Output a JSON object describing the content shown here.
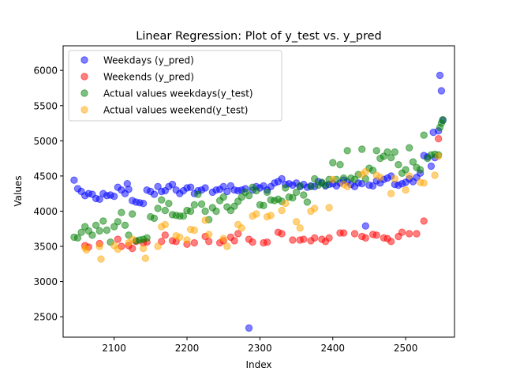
{
  "chart_data": {
    "type": "scatter",
    "title": "Linear Regression: Plot of y_test vs. y_pred",
    "xlabel": "Index",
    "ylabel": "Values",
    "xlim": [
      2030,
      2567
    ],
    "ylim": [
      2210,
      6350
    ],
    "xticks": [
      2100,
      2200,
      2300,
      2400,
      2500
    ],
    "yticks": [
      2500,
      3000,
      3500,
      4000,
      4500,
      5000,
      5500,
      6000
    ],
    "legend_position": "top-left",
    "series": [
      {
        "name": "Weekdays (y_pred)",
        "color": "#0000ff",
        "points": [
          [
            2045,
            4440
          ],
          [
            2050,
            4320
          ],
          [
            2055,
            4280
          ],
          [
            2060,
            4220
          ],
          [
            2065,
            4250
          ],
          [
            2070,
            4240
          ],
          [
            2075,
            4180
          ],
          [
            2080,
            4170
          ],
          [
            2085,
            4250
          ],
          [
            2090,
            4220
          ],
          [
            2095,
            4230
          ],
          [
            2100,
            4210
          ],
          [
            2105,
            4340
          ],
          [
            2110,
            4300
          ],
          [
            2115,
            4250
          ],
          [
            2118,
            4390
          ],
          [
            2120,
            4310
          ],
          [
            2125,
            4150
          ],
          [
            2130,
            4130
          ],
          [
            2135,
            4120
          ],
          [
            2140,
            4110
          ],
          [
            2145,
            4300
          ],
          [
            2150,
            4280
          ],
          [
            2155,
            4240
          ],
          [
            2160,
            4350
          ],
          [
            2165,
            4280
          ],
          [
            2170,
            4290
          ],
          [
            2175,
            4350
          ],
          [
            2180,
            4380
          ],
          [
            2185,
            4300
          ],
          [
            2190,
            4250
          ],
          [
            2195,
            4290
          ],
          [
            2200,
            4330
          ],
          [
            2205,
            4340
          ],
          [
            2210,
            4250
          ],
          [
            2215,
            4290
          ],
          [
            2220,
            4300
          ],
          [
            2225,
            4330
          ],
          [
            2235,
            4270
          ],
          [
            2240,
            4300
          ],
          [
            2245,
            4310
          ],
          [
            2250,
            4350
          ],
          [
            2255,
            4280
          ],
          [
            2260,
            4360
          ],
          [
            2265,
            4300
          ],
          [
            2270,
            4290
          ],
          [
            2275,
            4300
          ],
          [
            2280,
            4320
          ],
          [
            2285,
            2340
          ],
          [
            2290,
            4300
          ],
          [
            2295,
            4350
          ],
          [
            2300,
            4330
          ],
          [
            2305,
            4360
          ],
          [
            2310,
            4300
          ],
          [
            2315,
            4350
          ],
          [
            2320,
            4400
          ],
          [
            2325,
            4420
          ],
          [
            2330,
            4460
          ],
          [
            2335,
            4380
          ],
          [
            2340,
            4390
          ],
          [
            2345,
            4370
          ],
          [
            2350,
            4400
          ],
          [
            2355,
            4350
          ],
          [
            2360,
            4380
          ],
          [
            2365,
            4340
          ],
          [
            2370,
            4360
          ],
          [
            2375,
            4350
          ],
          [
            2380,
            4420
          ],
          [
            2385,
            4400
          ],
          [
            2390,
            4360
          ],
          [
            2395,
            4380
          ],
          [
            2400,
            4390
          ],
          [
            2405,
            4360
          ],
          [
            2410,
            4400
          ],
          [
            2415,
            4440
          ],
          [
            2420,
            4420
          ],
          [
            2425,
            4380
          ],
          [
            2430,
            4350
          ],
          [
            2435,
            4400
          ],
          [
            2440,
            4390
          ],
          [
            2445,
            3790
          ],
          [
            2450,
            4370
          ],
          [
            2455,
            4360
          ],
          [
            2460,
            4430
          ],
          [
            2465,
            4400
          ],
          [
            2470,
            4450
          ],
          [
            2475,
            4470
          ],
          [
            2480,
            4500
          ],
          [
            2485,
            4380
          ],
          [
            2490,
            4370
          ],
          [
            2495,
            4390
          ],
          [
            2500,
            4410
          ],
          [
            2505,
            4460
          ],
          [
            2510,
            4420
          ],
          [
            2515,
            4480
          ],
          [
            2520,
            4540
          ],
          [
            2525,
            4790
          ],
          [
            2530,
            4770
          ],
          [
            2535,
            4640
          ],
          [
            2538,
            5120
          ],
          [
            2540,
            4760
          ],
          [
            2545,
            5140
          ],
          [
            2547,
            5930
          ],
          [
            2549,
            5710
          ],
          [
            2551,
            5290
          ]
        ]
      },
      {
        "name": "Weekends (y_pred)",
        "color": "#ff0000",
        "points": [
          [
            2060,
            3510
          ],
          [
            2065,
            3490
          ],
          [
            2080,
            3540
          ],
          [
            2105,
            3600
          ],
          [
            2110,
            3500
          ],
          [
            2120,
            3510
          ],
          [
            2125,
            3470
          ],
          [
            2130,
            3570
          ],
          [
            2140,
            3550
          ],
          [
            2145,
            3560
          ],
          [
            2165,
            3570
          ],
          [
            2170,
            3660
          ],
          [
            2180,
            3580
          ],
          [
            2185,
            3570
          ],
          [
            2200,
            3530
          ],
          [
            2210,
            3550
          ],
          [
            2225,
            3640
          ],
          [
            2230,
            3570
          ],
          [
            2245,
            3550
          ],
          [
            2250,
            3580
          ],
          [
            2260,
            3630
          ],
          [
            2265,
            3580
          ],
          [
            2270,
            3680
          ],
          [
            2285,
            3600
          ],
          [
            2290,
            3560
          ],
          [
            2305,
            3550
          ],
          [
            2310,
            3560
          ],
          [
            2325,
            3700
          ],
          [
            2330,
            3680
          ],
          [
            2345,
            3590
          ],
          [
            2355,
            3590
          ],
          [
            2360,
            3600
          ],
          [
            2370,
            3580
          ],
          [
            2375,
            3620
          ],
          [
            2385,
            3600
          ],
          [
            2390,
            3570
          ],
          [
            2395,
            3620
          ],
          [
            2410,
            3690
          ],
          [
            2415,
            3690
          ],
          [
            2430,
            3680
          ],
          [
            2440,
            3640
          ],
          [
            2445,
            3620
          ],
          [
            2455,
            3670
          ],
          [
            2460,
            3660
          ],
          [
            2470,
            3620
          ],
          [
            2475,
            3610
          ],
          [
            2480,
            3570
          ],
          [
            2490,
            3640
          ],
          [
            2495,
            3700
          ],
          [
            2505,
            3680
          ],
          [
            2515,
            3680
          ],
          [
            2525,
            3860
          ],
          [
            2545,
            5030
          ]
        ]
      },
      {
        "name": "Actual values weekdays(y_test)",
        "color": "#008000",
        "points": [
          [
            2045,
            3630
          ],
          [
            2050,
            3620
          ],
          [
            2055,
            3700
          ],
          [
            2060,
            3780
          ],
          [
            2065,
            3720
          ],
          [
            2070,
            3660
          ],
          [
            2075,
            3800
          ],
          [
            2080,
            3720
          ],
          [
            2085,
            3860
          ],
          [
            2090,
            3730
          ],
          [
            2095,
            3560
          ],
          [
            2100,
            3780
          ],
          [
            2105,
            3850
          ],
          [
            2110,
            3980
          ],
          [
            2115,
            3800
          ],
          [
            2120,
            3660
          ],
          [
            2125,
            3960
          ],
          [
            2130,
            3580
          ],
          [
            2135,
            3590
          ],
          [
            2140,
            3600
          ],
          [
            2145,
            3620
          ],
          [
            2150,
            3920
          ],
          [
            2155,
            3900
          ],
          [
            2160,
            4040
          ],
          [
            2165,
            4160
          ],
          [
            2170,
            4010
          ],
          [
            2175,
            4110
          ],
          [
            2180,
            3950
          ],
          [
            2185,
            3940
          ],
          [
            2190,
            3930
          ],
          [
            2195,
            3930
          ],
          [
            2200,
            4010
          ],
          [
            2205,
            4000
          ],
          [
            2210,
            4090
          ],
          [
            2215,
            4240
          ],
          [
            2220,
            4100
          ],
          [
            2225,
            4000
          ],
          [
            2230,
            3880
          ],
          [
            2235,
            4050
          ],
          [
            2240,
            4000
          ],
          [
            2245,
            4150
          ],
          [
            2250,
            4200
          ],
          [
            2255,
            4060
          ],
          [
            2260,
            4010
          ],
          [
            2265,
            4070
          ],
          [
            2270,
            4140
          ],
          [
            2275,
            4200
          ],
          [
            2280,
            4270
          ],
          [
            2285,
            4220
          ],
          [
            2290,
            4340
          ],
          [
            2295,
            4290
          ],
          [
            2300,
            4090
          ],
          [
            2305,
            4080
          ],
          [
            2310,
            4270
          ],
          [
            2315,
            4160
          ],
          [
            2320,
            4150
          ],
          [
            2325,
            4170
          ],
          [
            2330,
            4140
          ],
          [
            2335,
            4330
          ],
          [
            2340,
            4200
          ],
          [
            2345,
            4190
          ],
          [
            2350,
            4270
          ],
          [
            2355,
            4360
          ],
          [
            2360,
            4230
          ],
          [
            2365,
            4130
          ],
          [
            2370,
            4350
          ],
          [
            2375,
            4460
          ],
          [
            2380,
            4370
          ],
          [
            2385,
            4410
          ],
          [
            2390,
            4370
          ],
          [
            2395,
            4450
          ],
          [
            2400,
            4690
          ],
          [
            2405,
            4450
          ],
          [
            2410,
            4660
          ],
          [
            2415,
            4470
          ],
          [
            2420,
            4860
          ],
          [
            2425,
            4470
          ],
          [
            2430,
            4450
          ],
          [
            2435,
            4520
          ],
          [
            2440,
            4880
          ],
          [
            2445,
            4460
          ],
          [
            2450,
            4610
          ],
          [
            2455,
            4580
          ],
          [
            2460,
            4860
          ],
          [
            2465,
            4750
          ],
          [
            2470,
            4780
          ],
          [
            2475,
            4840
          ],
          [
            2480,
            4760
          ],
          [
            2485,
            4840
          ],
          [
            2490,
            4660
          ],
          [
            2495,
            4540
          ],
          [
            2500,
            4590
          ],
          [
            2505,
            4900
          ],
          [
            2510,
            4700
          ],
          [
            2515,
            4620
          ],
          [
            2520,
            4590
          ],
          [
            2525,
            5080
          ],
          [
            2530,
            4750
          ],
          [
            2535,
            4800
          ],
          [
            2540,
            4810
          ],
          [
            2545,
            4800
          ],
          [
            2547,
            5190
          ],
          [
            2549,
            5250
          ],
          [
            2551,
            5300
          ]
        ]
      },
      {
        "name": "Actual values weekend(y_test)",
        "color": "#ffa500",
        "points": [
          [
            2060,
            3480
          ],
          [
            2062,
            3450
          ],
          [
            2080,
            3500
          ],
          [
            2082,
            3320
          ],
          [
            2100,
            3510
          ],
          [
            2105,
            3460
          ],
          [
            2120,
            3550
          ],
          [
            2125,
            3600
          ],
          [
            2140,
            3470
          ],
          [
            2143,
            3330
          ],
          [
            2160,
            3500
          ],
          [
            2165,
            3780
          ],
          [
            2170,
            3810
          ],
          [
            2185,
            3650
          ],
          [
            2190,
            3630
          ],
          [
            2200,
            3590
          ],
          [
            2205,
            3740
          ],
          [
            2210,
            3730
          ],
          [
            2225,
            3870
          ],
          [
            2230,
            3670
          ],
          [
            2250,
            3610
          ],
          [
            2255,
            3500
          ],
          [
            2270,
            3810
          ],
          [
            2275,
            3760
          ],
          [
            2290,
            3930
          ],
          [
            2295,
            3960
          ],
          [
            2310,
            3920
          ],
          [
            2315,
            3940
          ],
          [
            2330,
            4010
          ],
          [
            2335,
            4110
          ],
          [
            2350,
            3850
          ],
          [
            2355,
            3760
          ],
          [
            2370,
            4000
          ],
          [
            2375,
            4040
          ],
          [
            2395,
            4050
          ],
          [
            2400,
            4450
          ],
          [
            2415,
            4380
          ],
          [
            2420,
            4350
          ],
          [
            2440,
            4520
          ],
          [
            2445,
            4560
          ],
          [
            2460,
            4510
          ],
          [
            2465,
            4480
          ],
          [
            2480,
            4250
          ],
          [
            2485,
            4460
          ],
          [
            2500,
            4300
          ],
          [
            2505,
            4500
          ],
          [
            2520,
            4410
          ],
          [
            2525,
            4400
          ],
          [
            2540,
            4510
          ],
          [
            2545,
            4780
          ]
        ]
      }
    ]
  }
}
